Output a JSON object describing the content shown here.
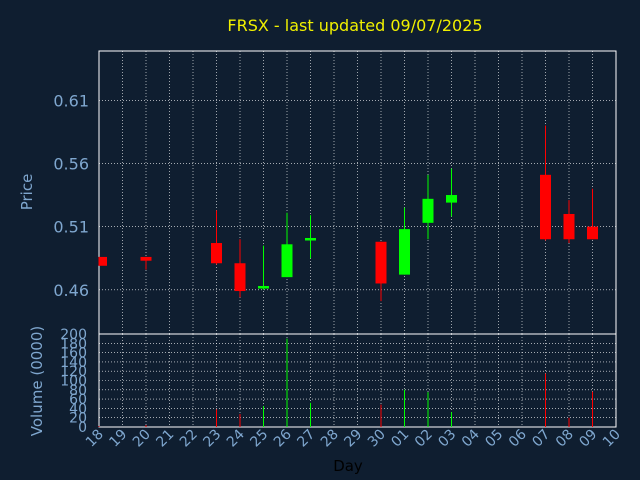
{
  "chart_data": [
    {
      "type": "candlestick",
      "title": "FRSX - last updated 09/07/2025",
      "ylabel": "Price",
      "ylim": [
        0.425,
        0.649
      ],
      "yticks": [
        "0.61",
        "0.56",
        "0.51",
        "0.46"
      ],
      "colors": {
        "up": "#00ff00",
        "down": "#ff0000",
        "grid": "#ffffff",
        "background": "#0f1e30",
        "text": "#7fa7cf",
        "title": "#f0f000"
      },
      "candles": [
        {
          "day": "18",
          "open": 0.486,
          "high": 0.486,
          "low": 0.479,
          "close": 0.479
        },
        {
          "day": "20",
          "open": 0.486,
          "high": 0.486,
          "low": 0.476,
          "close": 0.483
        },
        {
          "day": "23",
          "open": 0.497,
          "high": 0.523,
          "low": 0.48,
          "close": 0.481
        },
        {
          "day": "24",
          "open": 0.481,
          "high": 0.5,
          "low": 0.454,
          "close": 0.459
        },
        {
          "day": "25",
          "open": 0.461,
          "high": 0.495,
          "low": 0.46,
          "close": 0.463
        },
        {
          "day": "26",
          "open": 0.47,
          "high": 0.521,
          "low": 0.47,
          "close": 0.496
        },
        {
          "day": "27",
          "open": 0.499,
          "high": 0.519,
          "low": 0.485,
          "close": 0.501
        },
        {
          "day": "30",
          "open": 0.498,
          "high": 0.498,
          "low": 0.451,
          "close": 0.465
        },
        {
          "day": "01",
          "open": 0.472,
          "high": 0.525,
          "low": 0.472,
          "close": 0.508
        },
        {
          "day": "02",
          "open": 0.513,
          "high": 0.551,
          "low": 0.5,
          "close": 0.532
        },
        {
          "day": "03",
          "open": 0.529,
          "high": 0.556,
          "low": 0.518,
          "close": 0.535
        },
        {
          "day": "07",
          "open": 0.551,
          "high": 0.59,
          "low": 0.499,
          "close": 0.5
        },
        {
          "day": "08",
          "open": 0.52,
          "high": 0.531,
          "low": 0.497,
          "close": 0.5
        },
        {
          "day": "09",
          "open": 0.51,
          "high": 0.54,
          "low": 0.5,
          "close": 0.5
        }
      ]
    },
    {
      "type": "bar",
      "ylabel": "Volume (0000)",
      "ylim": [
        0,
        200
      ],
      "yticks": [
        200,
        180,
        160,
        140,
        120,
        100,
        80,
        60,
        40,
        20,
        0
      ],
      "xlabel": "Day",
      "categories": [
        "18",
        "19",
        "20",
        "21",
        "22",
        "23",
        "24",
        "25",
        "26",
        "27",
        "28",
        "29",
        "30",
        "01",
        "02",
        "03",
        "04",
        "05",
        "06",
        "07",
        "08",
        "09",
        "10"
      ],
      "values": [
        2,
        0,
        4,
        0,
        0,
        38,
        28,
        45,
        190,
        52,
        0,
        0,
        48,
        80,
        75,
        32,
        0,
        0,
        0,
        115,
        20,
        76,
        0
      ],
      "directions": [
        "down",
        "",
        "down",
        "",
        "",
        "down",
        "down",
        "up",
        "up",
        "up",
        "",
        "",
        "down",
        "up",
        "up",
        "up",
        "",
        "",
        "",
        "down",
        "down",
        "down",
        ""
      ]
    }
  ]
}
